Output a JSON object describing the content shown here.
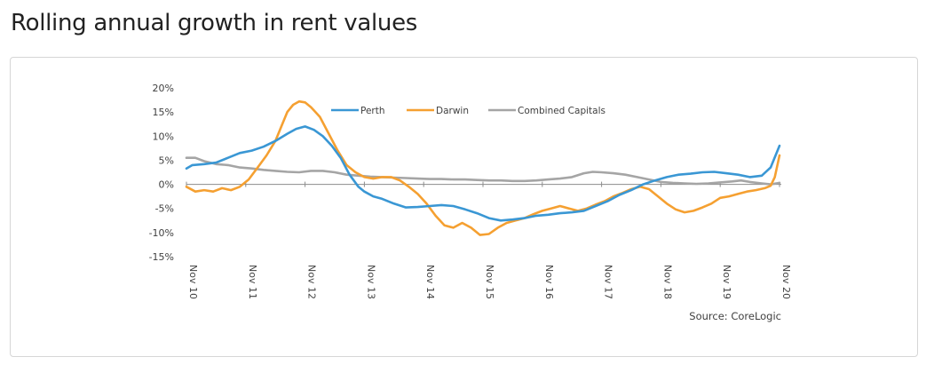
{
  "page": {
    "title": "Rolling annual growth in rent values"
  },
  "chart_data": {
    "type": "line",
    "title": "Rolling annual growth in rent values",
    "ylim": [
      -15,
      20
    ],
    "yticks": [
      {
        "v": 20,
        "label": "20%"
      },
      {
        "v": 15,
        "label": "15%"
      },
      {
        "v": 10,
        "label": "10%"
      },
      {
        "v": 5,
        "label": "5%"
      },
      {
        "v": 0,
        "label": "0%"
      },
      {
        "v": -5,
        "label": "-5%"
      },
      {
        "v": -10,
        "label": "-10%"
      },
      {
        "v": -15,
        "label": "-15%"
      }
    ],
    "xlim": [
      0,
      10
    ],
    "xticks": [
      {
        "v": 0,
        "label": "Nov 10"
      },
      {
        "v": 1,
        "label": "Nov 11"
      },
      {
        "v": 2,
        "label": "Nov 12"
      },
      {
        "v": 3,
        "label": "Nov 13"
      },
      {
        "v": 4,
        "label": "Nov 14"
      },
      {
        "v": 5,
        "label": "Nov 15"
      },
      {
        "v": 6,
        "label": "Nov 16"
      },
      {
        "v": 7,
        "label": "Nov 17"
      },
      {
        "v": 8,
        "label": "Nov 18"
      },
      {
        "v": 9,
        "label": "Nov 19"
      },
      {
        "v": 10,
        "label": "Nov 20"
      }
    ],
    "source": "Source: CoreLogic",
    "series": [
      {
        "name": "Perth",
        "color": "#3a97d4",
        "points": [
          [
            0,
            3.3
          ],
          [
            0.1,
            4
          ],
          [
            0.3,
            4.2
          ],
          [
            0.5,
            4.5
          ],
          [
            0.7,
            5.5
          ],
          [
            0.9,
            6.5
          ],
          [
            1.1,
            7
          ],
          [
            1.3,
            7.8
          ],
          [
            1.5,
            9
          ],
          [
            1.7,
            10.5
          ],
          [
            1.85,
            11.5
          ],
          [
            2.0,
            12
          ],
          [
            2.15,
            11.3
          ],
          [
            2.3,
            10
          ],
          [
            2.45,
            8
          ],
          [
            2.6,
            5.5
          ],
          [
            2.75,
            2
          ],
          [
            2.9,
            -0.5
          ],
          [
            3.0,
            -1.5
          ],
          [
            3.15,
            -2.5
          ],
          [
            3.3,
            -3
          ],
          [
            3.5,
            -4
          ],
          [
            3.7,
            -4.8
          ],
          [
            3.9,
            -4.7
          ],
          [
            4.1,
            -4.5
          ],
          [
            4.3,
            -4.3
          ],
          [
            4.5,
            -4.5
          ],
          [
            4.7,
            -5.2
          ],
          [
            4.9,
            -6
          ],
          [
            5.1,
            -7
          ],
          [
            5.3,
            -7.5
          ],
          [
            5.5,
            -7.3
          ],
          [
            5.7,
            -7
          ],
          [
            5.9,
            -6.5
          ],
          [
            6.1,
            -6.3
          ],
          [
            6.3,
            -6
          ],
          [
            6.5,
            -5.8
          ],
          [
            6.7,
            -5.5
          ],
          [
            6.9,
            -4.5
          ],
          [
            7.1,
            -3.5
          ],
          [
            7.3,
            -2.2
          ],
          [
            7.5,
            -1.2
          ],
          [
            7.7,
            0
          ],
          [
            7.9,
            0.8
          ],
          [
            8.1,
            1.5
          ],
          [
            8.3,
            2
          ],
          [
            8.5,
            2.2
          ],
          [
            8.7,
            2.5
          ],
          [
            8.9,
            2.6
          ],
          [
            9.1,
            2.3
          ],
          [
            9.3,
            2
          ],
          [
            9.5,
            1.5
          ],
          [
            9.7,
            1.8
          ],
          [
            9.85,
            3.5
          ],
          [
            10.0,
            8
          ]
        ]
      },
      {
        "name": "Darwin",
        "color": "#f5a031",
        "points": [
          [
            0,
            -0.5
          ],
          [
            0.15,
            -1.5
          ],
          [
            0.3,
            -1.2
          ],
          [
            0.45,
            -1.5
          ],
          [
            0.6,
            -0.8
          ],
          [
            0.75,
            -1.2
          ],
          [
            0.9,
            -0.5
          ],
          [
            1.05,
            1
          ],
          [
            1.2,
            3.5
          ],
          [
            1.35,
            6
          ],
          [
            1.5,
            9
          ],
          [
            1.6,
            12
          ],
          [
            1.7,
            15
          ],
          [
            1.8,
            16.5
          ],
          [
            1.9,
            17.2
          ],
          [
            2.0,
            17
          ],
          [
            2.1,
            16
          ],
          [
            2.25,
            14
          ],
          [
            2.4,
            10.5
          ],
          [
            2.55,
            7
          ],
          [
            2.7,
            4
          ],
          [
            2.85,
            2.5
          ],
          [
            3.0,
            1.5
          ],
          [
            3.15,
            1.2
          ],
          [
            3.3,
            1.5
          ],
          [
            3.45,
            1.5
          ],
          [
            3.6,
            0.8
          ],
          [
            3.75,
            -0.5
          ],
          [
            3.9,
            -2
          ],
          [
            4.05,
            -4
          ],
          [
            4.2,
            -6.5
          ],
          [
            4.35,
            -8.5
          ],
          [
            4.5,
            -9
          ],
          [
            4.65,
            -8
          ],
          [
            4.8,
            -9
          ],
          [
            4.95,
            -10.5
          ],
          [
            5.1,
            -10.3
          ],
          [
            5.25,
            -9
          ],
          [
            5.4,
            -8
          ],
          [
            5.55,
            -7.5
          ],
          [
            5.7,
            -7
          ],
          [
            5.85,
            -6.2
          ],
          [
            6.0,
            -5.5
          ],
          [
            6.15,
            -5
          ],
          [
            6.3,
            -4.5
          ],
          [
            6.45,
            -5
          ],
          [
            6.6,
            -5.5
          ],
          [
            6.75,
            -5
          ],
          [
            6.9,
            -4.2
          ],
          [
            7.05,
            -3.5
          ],
          [
            7.2,
            -2.5
          ],
          [
            7.35,
            -1.8
          ],
          [
            7.5,
            -1
          ],
          [
            7.65,
            -0.5
          ],
          [
            7.8,
            -1
          ],
          [
            7.95,
            -2.5
          ],
          [
            8.1,
            -4
          ],
          [
            8.25,
            -5.2
          ],
          [
            8.4,
            -5.8
          ],
          [
            8.55,
            -5.5
          ],
          [
            8.7,
            -4.8
          ],
          [
            8.85,
            -4
          ],
          [
            9.0,
            -2.8
          ],
          [
            9.15,
            -2.5
          ],
          [
            9.3,
            -2
          ],
          [
            9.45,
            -1.5
          ],
          [
            9.6,
            -1.2
          ],
          [
            9.75,
            -0.8
          ],
          [
            9.85,
            -0.3
          ],
          [
            9.92,
            1.5
          ],
          [
            10.0,
            6
          ]
        ]
      },
      {
        "name": "Combined Capitals",
        "color": "#a5a5a5",
        "points": [
          [
            0,
            5.5
          ],
          [
            0.15,
            5.5
          ],
          [
            0.3,
            4.8
          ],
          [
            0.5,
            4.2
          ],
          [
            0.7,
            4
          ],
          [
            0.9,
            3.5
          ],
          [
            1.1,
            3.3
          ],
          [
            1.3,
            3
          ],
          [
            1.5,
            2.8
          ],
          [
            1.7,
            2.6
          ],
          [
            1.9,
            2.5
          ],
          [
            2.1,
            2.8
          ],
          [
            2.3,
            2.8
          ],
          [
            2.5,
            2.5
          ],
          [
            2.7,
            2
          ],
          [
            2.9,
            1.8
          ],
          [
            3.1,
            1.6
          ],
          [
            3.3,
            1.5
          ],
          [
            3.5,
            1.4
          ],
          [
            3.7,
            1.3
          ],
          [
            3.9,
            1.2
          ],
          [
            4.1,
            1.1
          ],
          [
            4.3,
            1.1
          ],
          [
            4.5,
            1
          ],
          [
            4.7,
            1
          ],
          [
            4.9,
            0.9
          ],
          [
            5.1,
            0.8
          ],
          [
            5.3,
            0.8
          ],
          [
            5.5,
            0.7
          ],
          [
            5.7,
            0.7
          ],
          [
            5.9,
            0.8
          ],
          [
            6.1,
            1
          ],
          [
            6.3,
            1.2
          ],
          [
            6.5,
            1.5
          ],
          [
            6.7,
            2.3
          ],
          [
            6.85,
            2.6
          ],
          [
            7.0,
            2.5
          ],
          [
            7.2,
            2.3
          ],
          [
            7.4,
            2
          ],
          [
            7.6,
            1.5
          ],
          [
            7.8,
            1
          ],
          [
            8.0,
            0.5
          ],
          [
            8.2,
            0.3
          ],
          [
            8.4,
            0.2
          ],
          [
            8.6,
            0.1
          ],
          [
            8.8,
            0.2
          ],
          [
            9.0,
            0.4
          ],
          [
            9.2,
            0.6
          ],
          [
            9.35,
            0.8
          ],
          [
            9.5,
            0.5
          ],
          [
            9.7,
            0.2
          ],
          [
            9.85,
            0
          ],
          [
            10.0,
            0.3
          ]
        ]
      }
    ]
  }
}
